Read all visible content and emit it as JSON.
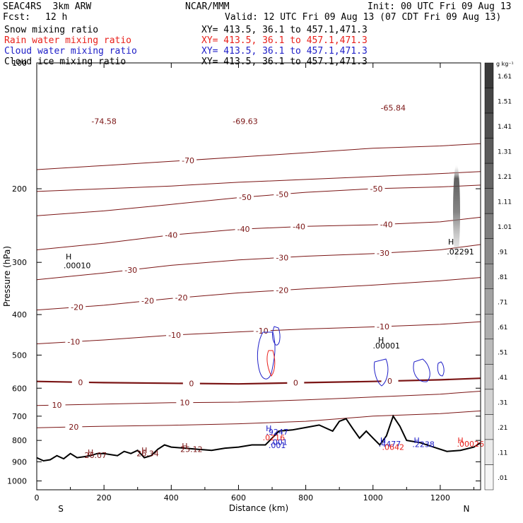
{
  "header": {
    "model": "SEAC4RS  3km ARW",
    "org": "NCAR/MMM",
    "init": "Init: 00 UTC Fri 09 Aug 13",
    "fcst_label": "Fcst:",
    "fcst_value": "12 h",
    "valid": "Valid: 12 UTC Fri 09 Aug 13 (07 CDT Fri 09 Aug 13)",
    "fields": [
      {
        "name": "Snow mixing ratio",
        "xy": "XY= 413.5, 36.1 to 457.1,471.3",
        "color": "#000000"
      },
      {
        "name": "Rain water mixing ratio",
        "xy": "XY= 413.5, 36.1 to 457.1,471.3",
        "color": "#e8201b"
      },
      {
        "name": "Cloud water mixing ratio",
        "xy": "XY= 413.5, 36.1 to 457.1,471.3",
        "color": "#2020c8"
      },
      {
        "name": "Cloud ice mixing ratio",
        "xy": "XY= 413.5, 36.1 to 457.1,471.3",
        "color": "#000000"
      }
    ]
  },
  "chart_data": {
    "type": "contour-cross-section",
    "xlabel": "Distance (km)",
    "ylabel": "Pressure (hPa)",
    "xlim": [
      0,
      1320
    ],
    "ylim": [
      1050,
      100
    ],
    "x_ticks": [
      0,
      200,
      400,
      600,
      800,
      1000,
      1200
    ],
    "y_ticks": [
      100,
      200,
      300,
      400,
      500,
      600,
      700,
      800,
      900,
      1000
    ],
    "y_tick_labels": [
      "100",
      "200",
      "300",
      "400",
      "500",
      "600",
      "700",
      "800",
      "900",
      "1000"
    ],
    "end_labels": {
      "left": "S",
      "right": "N"
    },
    "temperature_contours": [
      {
        "value": -70,
        "label": "-70",
        "labels_at_x": [
          450
        ],
        "p": [
          180,
          176,
          172,
          168,
          164,
          160,
          158,
          156
        ]
      },
      {
        "value": -60,
        "label": "",
        "labels_at_x": [],
        "p": [
          203,
          200,
          197,
          193,
          190,
          187,
          184,
          182
        ]
      },
      {
        "value": -50,
        "label": "-50",
        "labels_at_x": [
          620,
          730,
          1010
        ],
        "p": [
          232,
          226,
          218,
          210,
          204,
          200,
          198,
          196
        ]
      },
      {
        "value": -40,
        "label": "-40",
        "labels_at_x": [
          400,
          615,
          780,
          1040
        ],
        "p": [
          280,
          270,
          258,
          250,
          246,
          244,
          240,
          234
        ]
      },
      {
        "value": -30,
        "label": "-30",
        "labels_at_x": [
          280,
          730,
          1030
        ],
        "p": [
          330,
          318,
          305,
          296,
          290,
          286,
          280,
          272
        ]
      },
      {
        "value": -20,
        "label": "-20",
        "labels_at_x": [
          120,
          330,
          430,
          730
        ],
        "p": [
          390,
          380,
          366,
          355,
          347,
          340,
          332,
          326
        ]
      },
      {
        "value": -10,
        "label": "-10",
        "labels_at_x": [
          110,
          410,
          670,
          1030
        ],
        "p": [
          470,
          460,
          448,
          440,
          433,
          428,
          422,
          416
        ]
      },
      {
        "value": 0,
        "label": "0",
        "labels_at_x": [
          130,
          460,
          770,
          1050
        ],
        "p": [
          578,
          582,
          584,
          586,
          582,
          578,
          573,
          568
        ]
      },
      {
        "value": 10,
        "label": "10",
        "labels_at_x": [
          60,
          440
        ],
        "p": [
          660,
          655,
          650,
          648,
          640,
          630,
          620,
          610
        ]
      },
      {
        "value": 20,
        "label": "20",
        "labels_at_x": [
          110
        ],
        "p": [
          746,
          740,
          736,
          730,
          720,
          700,
          690,
          680
        ]
      }
    ],
    "contour_x": [
      0,
      200,
      400,
      600,
      800,
      1000,
      1200,
      1320
    ],
    "terrain": {
      "x": [
        0,
        20,
        40,
        60,
        80,
        100,
        120,
        140,
        160,
        180,
        200,
        220,
        240,
        260,
        280,
        300,
        320,
        340,
        360,
        380,
        400,
        440,
        480,
        520,
        560,
        600,
        640,
        680,
        700,
        720,
        760,
        800,
        840,
        880,
        900,
        920,
        940,
        960,
        980,
        1000,
        1020,
        1040,
        1060,
        1080,
        1100,
        1140,
        1180,
        1220,
        1260,
        1300,
        1320
      ],
      "p": [
        880,
        895,
        890,
        870,
        885,
        860,
        880,
        875,
        870,
        860,
        860,
        865,
        870,
        850,
        860,
        845,
        880,
        870,
        840,
        820,
        830,
        835,
        840,
        845,
        835,
        830,
        820,
        820,
        790,
        760,
        755,
        745,
        735,
        760,
        720,
        710,
        750,
        790,
        760,
        790,
        820,
        780,
        700,
        740,
        800,
        810,
        830,
        850,
        845,
        830,
        810
      ]
    },
    "annotations": [
      {
        "label": "-74.58",
        "x": 200,
        "p": 140,
        "color": "#7a1414"
      },
      {
        "label": "-69.63",
        "x": 620,
        "p": 140,
        "color": "#7a1414"
      },
      {
        "label": "-65.84",
        "x": 1060,
        "p": 130,
        "color": "#7a1414"
      },
      {
        "label": "H",
        "x": 95,
        "p": 295,
        "color": "#000000"
      },
      {
        "label": ".00010",
        "x": 120,
        "p": 310,
        "color": "#000000"
      },
      {
        "label": "H",
        "x": 1232,
        "p": 272,
        "color": "#000000"
      },
      {
        "label": ".02291",
        "x": 1260,
        "p": 287,
        "color": "#000000"
      },
      {
        "label": "H",
        "x": 1024,
        "p": 467,
        "color": "#000000"
      },
      {
        "label": ".00001",
        "x": 1040,
        "p": 482,
        "color": "#000000"
      },
      {
        "label": "H",
        "x": 690,
        "p": 760,
        "color": "#2020c8"
      },
      {
        "label": ".9247",
        "x": 715,
        "p": 775,
        "color": "#2020c8"
      },
      {
        "label": ".0216",
        "x": 705,
        "p": 800,
        "color": "#e8201b"
      },
      {
        "label": ".001",
        "x": 715,
        "p": 835,
        "color": "#2020c8"
      },
      {
        "label": ".001",
        "x": 720,
        "p": 820,
        "color": "#2020c8"
      },
      {
        "label": "H",
        "x": 1030,
        "p": 812,
        "color": "#2020c8"
      },
      {
        "label": ".4477",
        "x": 1050,
        "p": 828,
        "color": "#2020c8"
      },
      {
        "label": ".0642",
        "x": 1060,
        "p": 842,
        "color": "#e8201b"
      },
      {
        "label": "H",
        "x": 1130,
        "p": 812,
        "color": "#2020c8"
      },
      {
        "label": ".2238",
        "x": 1150,
        "p": 830,
        "color": "#2020c8"
      },
      {
        "label": "H",
        "x": 1260,
        "p": 812,
        "color": "#e8201b"
      },
      {
        "label": ".00026",
        "x": 1290,
        "p": 828,
        "color": "#e8201b"
      },
      {
        "label": "H",
        "x": 160,
        "p": 867,
        "color": "#7a1414"
      },
      {
        "label": "26.07",
        "x": 175,
        "p": 882,
        "color": "#7a1414"
      },
      {
        "label": "H",
        "x": 320,
        "p": 858,
        "color": "#7a1414"
      },
      {
        "label": "26.34",
        "x": 330,
        "p": 873,
        "color": "#7a1414"
      },
      {
        "label": "H",
        "x": 440,
        "p": 838,
        "color": "#7a1414"
      },
      {
        "label": "25.12",
        "x": 460,
        "p": 853,
        "color": "#7a1414"
      }
    ],
    "colorbar": {
      "unit": "g kg⁻¹",
      "labels": [
        "1.61",
        "1.51",
        "1.41",
        "1.31",
        "1.21",
        "1.11",
        "1.01",
        ".91",
        ".81",
        ".71",
        ".61",
        ".51",
        ".41",
        ".31",
        ".21",
        ".11",
        ".01"
      ],
      "colors": [
        "#3a3a3a",
        "#454545",
        "#505050",
        "#5b5b5b",
        "#666666",
        "#727272",
        "#7e7e7e",
        "#8a8a8a",
        "#969696",
        "#a2a2a2",
        "#aeaeae",
        "#bababa",
        "#c6c6c6",
        "#d2d2d2",
        "#dedede",
        "#eaeaea",
        "#f6f6f6"
      ]
    },
    "colors": {
      "temperature": "#7a1414",
      "zero_line": "#7a1414",
      "terrain": "#000000",
      "cloud_water": "#2020c8",
      "rain": "#e8201b"
    }
  }
}
